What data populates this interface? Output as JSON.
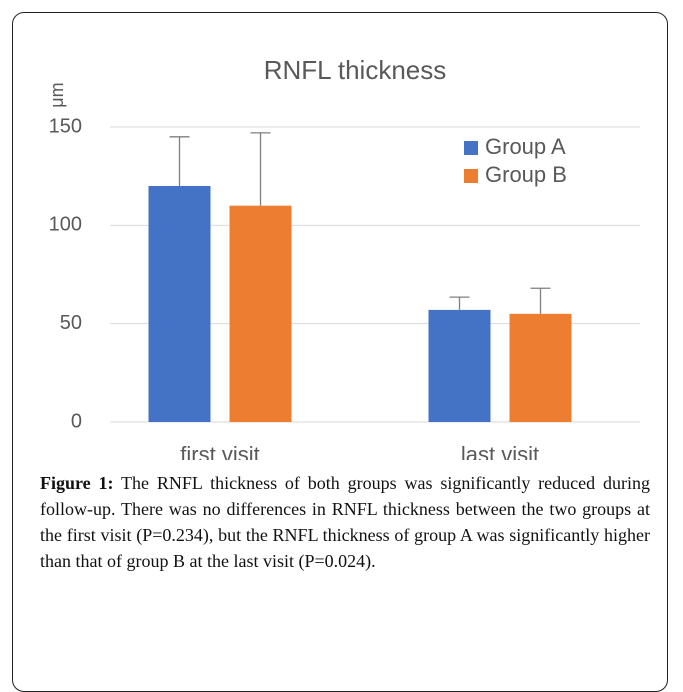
{
  "chart_data": {
    "type": "bar",
    "title": "RNFL thickness",
    "y_label": "μm",
    "categories": [
      "first visit",
      "last visit"
    ],
    "series": [
      {
        "name": "Group A",
        "color": "#4472c4",
        "values": [
          120,
          57
        ],
        "errors": [
          25,
          6.5
        ]
      },
      {
        "name": "Group B",
        "color": "#ed7d31",
        "values": [
          110,
          55
        ],
        "errors": [
          37,
          13
        ]
      }
    ],
    "ylim": [
      0,
      150
    ],
    "yticks": [
      0,
      50,
      100,
      150
    ],
    "grid": true,
    "legend": "upper right"
  },
  "caption": {
    "label": "Figure 1:",
    "text": "The RNFL thickness of both groups was significantly reduced during follow-up. There was no differences in RNFL thickness between the two groups at the first visit (P=0.234), but the RNFL thickness of group A was significantly higher than that of group B at the last visit (P=0.024)."
  }
}
